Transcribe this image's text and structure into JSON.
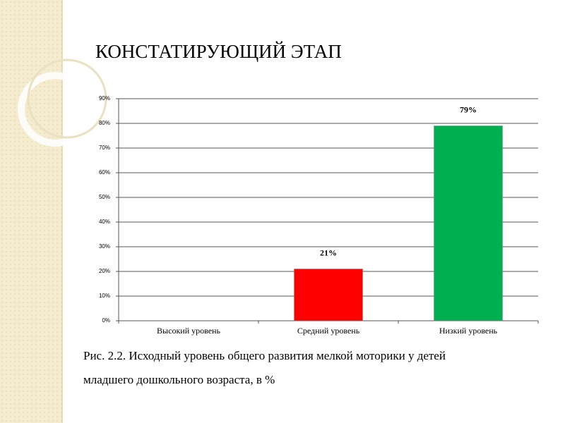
{
  "title": "КОНСТАТИРУЮЩИЙ ЭТАП",
  "chart_data": {
    "type": "bar",
    "categories": [
      "Высокий уровень",
      "Средний уровень",
      "Низкий уровень"
    ],
    "series": [
      {
        "name": null,
        "colors": [
          "#d9d9d9",
          "#ff0000",
          "#00b050"
        ],
        "values": [
          0,
          21,
          79
        ],
        "value_labels": [
          null,
          "21%",
          "79%"
        ]
      }
    ],
    "ylim": [
      0,
      90
    ],
    "yticks": [
      {
        "value": 0,
        "label": "0%"
      },
      {
        "value": 10,
        "label": "10%"
      },
      {
        "value": 20,
        "label": "20%"
      },
      {
        "value": 30,
        "label": "30%"
      },
      {
        "value": 40,
        "label": "40%"
      },
      {
        "value": 50,
        "label": "50%"
      },
      {
        "value": 60,
        "label": "60%"
      },
      {
        "value": 70,
        "label": "70%"
      },
      {
        "value": 80,
        "label": "80%"
      },
      {
        "value": 90,
        "label": "90%"
      }
    ],
    "grid": true
  },
  "caption": [
    "Рис. 2.2.  Исходный  уровень общего развития мелкой моторики у детей",
    "младшего дошкольного возраста, в %"
  ]
}
